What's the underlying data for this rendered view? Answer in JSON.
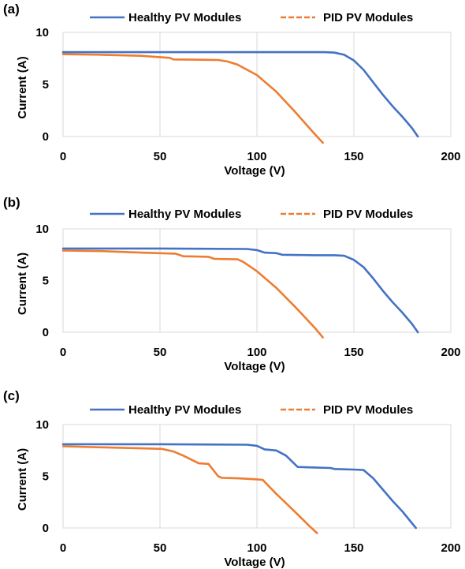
{
  "chart_data": [
    {
      "type": "line",
      "panel_label": "(a)",
      "xlabel": "Voltage (V)",
      "ylabel": "Current (A)",
      "xlim": [
        0,
        200
      ],
      "ylim": [
        0,
        10
      ],
      "xticks": [
        "0",
        "50",
        "100",
        "150",
        "200"
      ],
      "yticks": [
        "0",
        "5",
        "10"
      ],
      "grid": "vertical",
      "legend_position": "top",
      "series": [
        {
          "name": "Healthy PV Modules",
          "color": "#4472c4",
          "dash": "solid",
          "points": [
            [
              0,
              8.1
            ],
            [
              50,
              8.1
            ],
            [
              100,
              8.1
            ],
            [
              135,
              8.1
            ],
            [
              140,
              8.05
            ],
            [
              145,
              7.85
            ],
            [
              150,
              7.3
            ],
            [
              155,
              6.4
            ],
            [
              160,
              5.2
            ],
            [
              165,
              4.0
            ],
            [
              170,
              2.9
            ],
            [
              175,
              1.9
            ],
            [
              180,
              0.8
            ],
            [
              183,
              0.0
            ]
          ]
        },
        {
          "name": "PID PV Modules",
          "color": "#ed7d31",
          "dash": "dashed",
          "points": [
            [
              0,
              7.9
            ],
            [
              20,
              7.85
            ],
            [
              40,
              7.75
            ],
            [
              55,
              7.55
            ],
            [
              57,
              7.4
            ],
            [
              80,
              7.35
            ],
            [
              85,
              7.2
            ],
            [
              90,
              6.9
            ],
            [
              100,
              5.9
            ],
            [
              110,
              4.3
            ],
            [
              120,
              2.3
            ],
            [
              130,
              0.2
            ],
            [
              134,
              -0.6
            ]
          ]
        }
      ]
    },
    {
      "type": "line",
      "panel_label": "(b)",
      "xlabel": "Voltage (V)",
      "ylabel": "Current (A)",
      "xlim": [
        0,
        200
      ],
      "ylim": [
        0,
        10
      ],
      "xticks": [
        "0",
        "50",
        "100",
        "150",
        "200"
      ],
      "yticks": [
        "0",
        "5",
        "10"
      ],
      "grid": "vertical",
      "legend_position": "top",
      "series": [
        {
          "name": "Healthy PV Modules",
          "color": "#4472c4",
          "dash": "solid",
          "points": [
            [
              0,
              8.1
            ],
            [
              50,
              8.1
            ],
            [
              95,
              8.05
            ],
            [
              100,
              7.95
            ],
            [
              104,
              7.7
            ],
            [
              110,
              7.65
            ],
            [
              113,
              7.5
            ],
            [
              130,
              7.45
            ],
            [
              140,
              7.45
            ],
            [
              145,
              7.4
            ],
            [
              150,
              7.0
            ],
            [
              155,
              6.3
            ],
            [
              160,
              5.2
            ],
            [
              165,
              4.0
            ],
            [
              170,
              2.9
            ],
            [
              175,
              1.9
            ],
            [
              180,
              0.8
            ],
            [
              183,
              0.0
            ]
          ]
        },
        {
          "name": "PID PV Modules",
          "color": "#ed7d31",
          "dash": "dashed",
          "points": [
            [
              0,
              7.9
            ],
            [
              20,
              7.85
            ],
            [
              40,
              7.7
            ],
            [
              58,
              7.6
            ],
            [
              62,
              7.35
            ],
            [
              75,
              7.3
            ],
            [
              78,
              7.1
            ],
            [
              90,
              7.05
            ],
            [
              93,
              6.8
            ],
            [
              100,
              5.9
            ],
            [
              110,
              4.3
            ],
            [
              120,
              2.4
            ],
            [
              130,
              0.4
            ],
            [
              134,
              -0.5
            ]
          ]
        }
      ]
    },
    {
      "type": "line",
      "panel_label": "(c)",
      "xlabel": "Voltage (V)",
      "ylabel": "Current (A)",
      "xlim": [
        0,
        200
      ],
      "ylim": [
        0,
        10
      ],
      "xticks": [
        "0",
        "50",
        "100",
        "150",
        "200"
      ],
      "yticks": [
        "0",
        "5",
        "10"
      ],
      "grid": "vertical",
      "legend_position": "top",
      "series": [
        {
          "name": "Healthy PV Modules",
          "color": "#4472c4",
          "dash": "solid",
          "points": [
            [
              0,
              8.1
            ],
            [
              50,
              8.1
            ],
            [
              95,
              8.05
            ],
            [
              100,
              7.95
            ],
            [
              104,
              7.6
            ],
            [
              110,
              7.5
            ],
            [
              115,
              7.0
            ],
            [
              121,
              5.9
            ],
            [
              130,
              5.85
            ],
            [
              138,
              5.8
            ],
            [
              140,
              5.7
            ],
            [
              150,
              5.65
            ],
            [
              155,
              5.6
            ],
            [
              160,
              4.8
            ],
            [
              165,
              3.7
            ],
            [
              170,
              2.6
            ],
            [
              175,
              1.6
            ],
            [
              182,
              0.0
            ]
          ]
        },
        {
          "name": "PID PV Modules",
          "color": "#ed7d31",
          "dash": "dashed",
          "points": [
            [
              0,
              7.9
            ],
            [
              20,
              7.8
            ],
            [
              40,
              7.7
            ],
            [
              51,
              7.65
            ],
            [
              57,
              7.4
            ],
            [
              62,
              7.0
            ],
            [
              70,
              6.25
            ],
            [
              75,
              6.2
            ],
            [
              80,
              5.0
            ],
            [
              82,
              4.85
            ],
            [
              90,
              4.8
            ],
            [
              100,
              4.7
            ],
            [
              103,
              4.65
            ],
            [
              110,
              3.3
            ],
            [
              120,
              1.5
            ],
            [
              127,
              0.2
            ],
            [
              131,
              -0.5
            ]
          ]
        }
      ]
    }
  ]
}
